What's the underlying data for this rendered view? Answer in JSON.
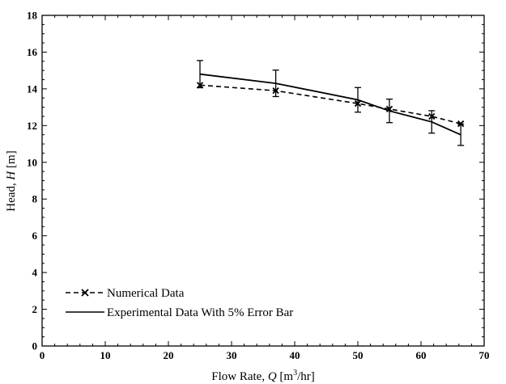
{
  "chart_data": {
    "type": "line",
    "xlabel": {
      "prefix": "Flow Rate, ",
      "symbol": "Q",
      "unit_open": " [m",
      "unit_sup": "3",
      "unit_close": "/hr]"
    },
    "ylabel": {
      "prefix": "Head, ",
      "symbol": "H",
      "unit": " [m]"
    },
    "xlim": [
      0,
      70
    ],
    "ylim": [
      0,
      18
    ],
    "xticks": [
      0,
      10,
      20,
      30,
      40,
      50,
      60,
      70
    ],
    "yticks": [
      0,
      2,
      4,
      6,
      8,
      10,
      12,
      14,
      16,
      18
    ],
    "grid": false,
    "legend_position": "bottom-left",
    "series": [
      {
        "name": "Numerical Data",
        "style": "dashed",
        "marker": "x",
        "color": "#000000",
        "x": [
          25,
          37,
          50,
          55,
          61.7,
          66.3
        ],
        "y": [
          14.2,
          13.9,
          13.2,
          12.9,
          12.5,
          12.1
        ]
      },
      {
        "name": "Experimental Data With 5% Error Bar",
        "style": "solid",
        "marker": "none",
        "color": "#000000",
        "x": [
          25,
          37,
          50,
          55,
          61.7,
          66.3
        ],
        "y": [
          14.8,
          14.3,
          13.4,
          12.8,
          12.2,
          11.5
        ],
        "error": [
          0.74,
          0.72,
          0.67,
          0.64,
          0.61,
          0.58
        ]
      }
    ]
  }
}
